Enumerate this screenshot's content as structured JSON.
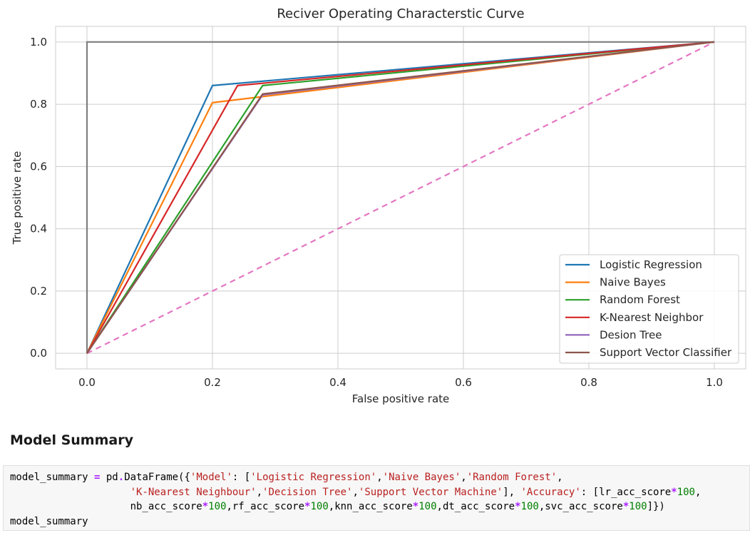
{
  "chart_data": {
    "type": "line",
    "title": "Reciver Operating Characterstic Curve",
    "xlabel": "False positive rate",
    "ylabel": "True positive rate",
    "xlim": [
      -0.05,
      1.05
    ],
    "ylim": [
      -0.05,
      1.05
    ],
    "xticks": [
      0.0,
      0.2,
      0.4,
      0.6,
      0.8,
      1.0
    ],
    "yticks": [
      0.0,
      0.2,
      0.4,
      0.6,
      0.8,
      1.0
    ],
    "xtick_labels": [
      "0.0",
      "0.2",
      "0.4",
      "0.6",
      "0.8",
      "1.0"
    ],
    "ytick_labels": [
      "0.0",
      "0.2",
      "0.4",
      "0.6",
      "0.8",
      "1.0"
    ],
    "grid": true,
    "legend": "lower-right",
    "series": [
      {
        "name": "Logistic Regression",
        "color": "#1f77b4",
        "x": [
          0.0,
          0.2,
          1.0
        ],
        "y": [
          0.0,
          0.86,
          1.0
        ]
      },
      {
        "name": "Naive Bayes",
        "color": "#ff7f0e",
        "x": [
          0.0,
          0.2,
          1.0
        ],
        "y": [
          0.0,
          0.805,
          1.0
        ]
      },
      {
        "name": "Random Forest",
        "color": "#2ca02c",
        "x": [
          0.0,
          0.28,
          1.0
        ],
        "y": [
          0.0,
          0.86,
          1.0
        ]
      },
      {
        "name": "K-Nearest Neighbor",
        "color": "#d62728",
        "x": [
          0.0,
          0.24,
          1.0
        ],
        "y": [
          0.0,
          0.86,
          1.0
        ]
      },
      {
        "name": "Desion Tree",
        "color": "#9467bd",
        "x": [
          0.0,
          0.28,
          1.0
        ],
        "y": [
          0.0,
          0.83,
          1.0
        ]
      },
      {
        "name": "Support Vector Classifier",
        "color": "#8c564b",
        "x": [
          0.0,
          0.28,
          1.0
        ],
        "y": [
          0.0,
          0.833,
          1.0
        ]
      }
    ],
    "reference_lines": [
      {
        "style": "dashed",
        "color": "#e377c2",
        "x": [
          0.0,
          1.0
        ],
        "y": [
          0.0,
          1.0
        ]
      },
      {
        "style": "solid",
        "color": "#7f7f7f",
        "x": [
          0.0,
          0.0,
          1.0
        ],
        "y": [
          0.0,
          1.0,
          1.0
        ]
      }
    ]
  },
  "summary": {
    "heading": "Model Summary"
  },
  "code_cell": {
    "lines": [
      [
        {
          "t": "model_summary ",
          "c": "plain"
        },
        {
          "t": "=",
          "c": "op"
        },
        {
          "t": " pd",
          "c": "plain"
        },
        {
          "t": ".",
          "c": "op"
        },
        {
          "t": "DataFrame({",
          "c": "plain"
        },
        {
          "t": "'Model'",
          "c": "str"
        },
        {
          "t": ": [",
          "c": "plain"
        },
        {
          "t": "'Logistic Regression'",
          "c": "str"
        },
        {
          "t": ",",
          "c": "plain"
        },
        {
          "t": "'Naive Bayes'",
          "c": "str"
        },
        {
          "t": ",",
          "c": "plain"
        },
        {
          "t": "'Random Forest'",
          "c": "str"
        },
        {
          "t": ",",
          "c": "plain"
        }
      ],
      [
        {
          "t": "                    ",
          "c": "plain"
        },
        {
          "t": "'K-Nearest Neighbour'",
          "c": "str"
        },
        {
          "t": ",",
          "c": "plain"
        },
        {
          "t": "'Decision Tree'",
          "c": "str"
        },
        {
          "t": ",",
          "c": "plain"
        },
        {
          "t": "'Support Vector Machine'",
          "c": "str"
        },
        {
          "t": "], ",
          "c": "plain"
        },
        {
          "t": "'Accuracy'",
          "c": "str"
        },
        {
          "t": ": [lr_acc_score",
          "c": "plain"
        },
        {
          "t": "*",
          "c": "op"
        },
        {
          "t": "100",
          "c": "num"
        },
        {
          "t": ",",
          "c": "plain"
        }
      ],
      [
        {
          "t": "                    nb_acc_score",
          "c": "plain"
        },
        {
          "t": "*",
          "c": "op"
        },
        {
          "t": "100",
          "c": "num"
        },
        {
          "t": ",rf_acc_score",
          "c": "plain"
        },
        {
          "t": "*",
          "c": "op"
        },
        {
          "t": "100",
          "c": "num"
        },
        {
          "t": ",knn_acc_score",
          "c": "plain"
        },
        {
          "t": "*",
          "c": "op"
        },
        {
          "t": "100",
          "c": "num"
        },
        {
          "t": ",dt_acc_score",
          "c": "plain"
        },
        {
          "t": "*",
          "c": "op"
        },
        {
          "t": "100",
          "c": "num"
        },
        {
          "t": ",svc_acc_score",
          "c": "plain"
        },
        {
          "t": "*",
          "c": "op"
        },
        {
          "t": "100",
          "c": "num"
        },
        {
          "t": "]})",
          "c": "plain"
        }
      ],
      [
        {
          "t": "model_summary",
          "c": "plain"
        }
      ]
    ]
  }
}
